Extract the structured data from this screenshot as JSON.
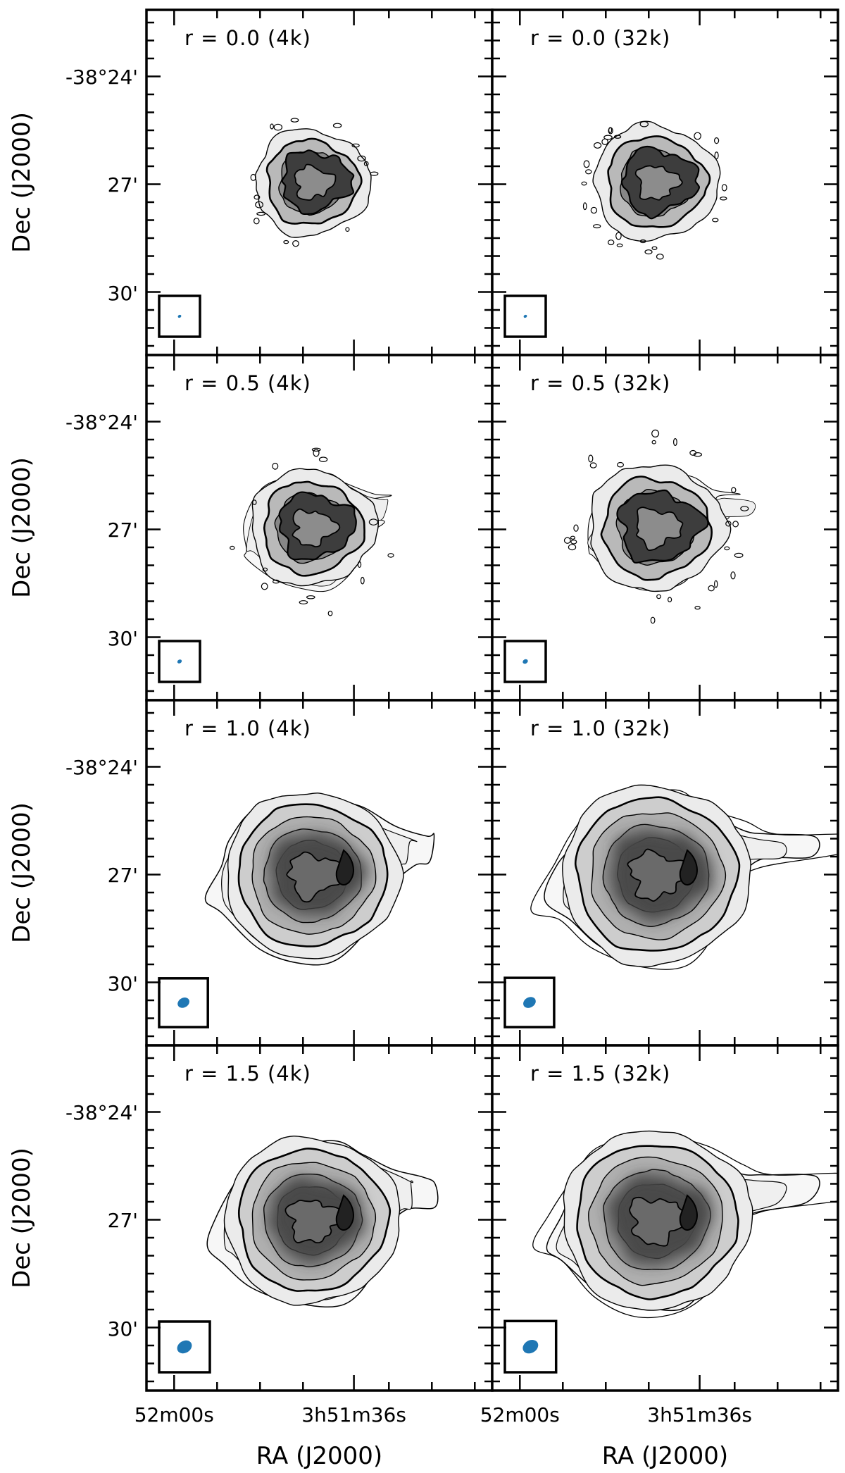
{
  "figure": {
    "columns": [
      "4k",
      "32k"
    ],
    "panels": [
      {
        "row": 0,
        "col": 0,
        "label": "r = 0.0 (4k)",
        "r": 0.0,
        "beam_scale": 0.22
      },
      {
        "row": 0,
        "col": 1,
        "label": "r = 0.0 (32k)",
        "r": 0.0,
        "beam_scale": 0.2
      },
      {
        "row": 1,
        "col": 0,
        "label": "r = 0.5 (4k)",
        "r": 0.5,
        "beam_scale": 0.3
      },
      {
        "row": 1,
        "col": 1,
        "label": "r = 0.5 (32k)",
        "r": 0.5,
        "beam_scale": 0.35
      },
      {
        "row": 2,
        "col": 0,
        "label": "r = 1.0 (4k)",
        "r": 1.0,
        "beam_scale": 0.8
      },
      {
        "row": 2,
        "col": 1,
        "label": "r = 1.0 (32k)",
        "r": 1.0,
        "beam_scale": 0.85
      },
      {
        "row": 3,
        "col": 0,
        "label": "r = 1.5 (4k)",
        "r": 1.5,
        "beam_scale": 1.0
      },
      {
        "row": 3,
        "col": 1,
        "label": "r = 1.5 (32k)",
        "r": 1.5,
        "beam_scale": 1.05
      }
    ],
    "y_ticks": [
      "-38°24'",
      "27'",
      "30'"
    ],
    "x_ticks": [
      "52m00s",
      "3h51m36s"
    ],
    "y_label": "Dec (J2000)",
    "x_label": "RA (J2000)",
    "colors": {
      "frame": "#000000",
      "beam": "#1f77b4",
      "background": "#ffffff",
      "grey_light": "#e6e6e6",
      "grey_dark": "#3a3a3a"
    }
  }
}
